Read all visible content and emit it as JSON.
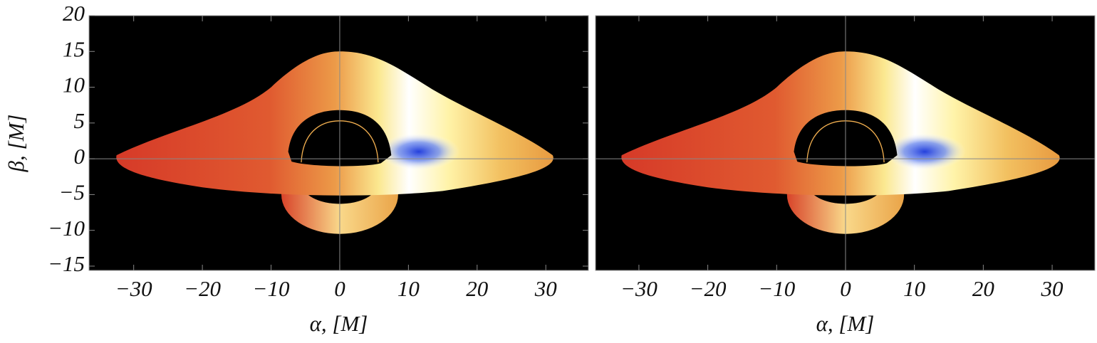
{
  "chart_data": [
    {
      "type": "image",
      "xlabel": "α, [M]",
      "ylabel": "β, [M]",
      "xlim": [
        -36.5,
        36.2
      ],
      "ylim": [
        -15.6,
        20
      ],
      "xticks": [
        {
          "value": -30,
          "label": "−30"
        },
        {
          "value": -20,
          "label": "−20"
        },
        {
          "value": -10,
          "label": "−10"
        },
        0,
        10,
        20,
        30
      ],
      "yticks": [
        20,
        15,
        10,
        5,
        0,
        {
          "value": -5,
          "label": "−5"
        },
        {
          "value": -10,
          "label": "−10"
        },
        {
          "value": -15,
          "label": "−15"
        }
      ]
    },
    {
      "type": "image",
      "xlabel": "α, [M]",
      "xlim": [
        -36.3,
        36.2
      ],
      "ylim": [
        -15.6,
        20
      ],
      "xticks": [
        {
          "value": -30,
          "label": "−30"
        },
        {
          "value": -20,
          "label": "−20"
        },
        {
          "value": -10,
          "label": "−10"
        },
        0,
        10,
        20,
        30
      ]
    }
  ]
}
